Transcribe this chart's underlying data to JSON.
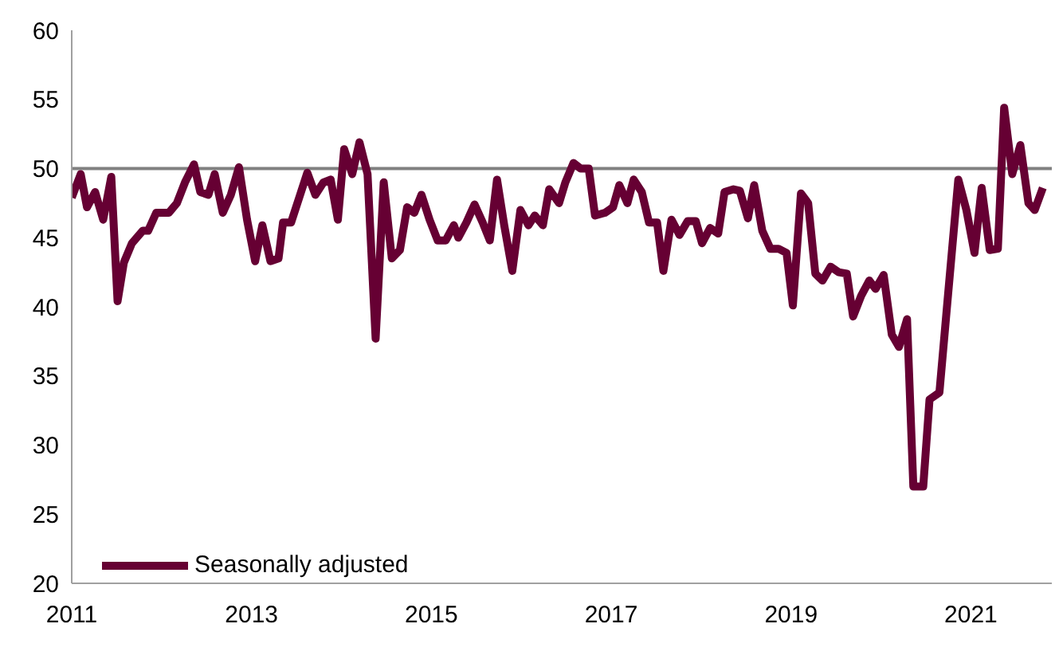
{
  "chart_data": {
    "type": "line",
    "x": [
      2011,
      2011.1,
      2011.17,
      2011.26,
      2011.35,
      2011.44,
      2011.51,
      2011.58,
      2011.67,
      2011.79,
      2011.85,
      2011.94,
      2012.08,
      2012.17,
      2012.26,
      2012.36,
      2012.43,
      2012.52,
      2012.59,
      2012.68,
      2012.77,
      2012.86,
      2012.95,
      2013.04,
      2013.12,
      2013.21,
      2013.3,
      2013.35,
      2013.44,
      2013.53,
      2013.62,
      2013.71,
      2013.8,
      2013.88,
      2013.96,
      2014.03,
      2014.12,
      2014.2,
      2014.29,
      2014.38,
      2014.47,
      2014.56,
      2014.65,
      2014.73,
      2014.81,
      2014.89,
      2014.98,
      2015.07,
      2015.16,
      2015.25,
      2015.3,
      2015.39,
      2015.48,
      2015.57,
      2015.65,
      2015.73,
      2015.81,
      2015.9,
      2015.99,
      2016.08,
      2016.15,
      2016.24,
      2016.31,
      2016.42,
      2016.49,
      2016.58,
      2016.66,
      2016.75,
      2016.82,
      2016.93,
      2017.02,
      2017.09,
      2017.18,
      2017.25,
      2017.34,
      2017.42,
      2017.51,
      2017.58,
      2017.67,
      2017.76,
      2017.85,
      2017.94,
      2018.01,
      2018.1,
      2018.19,
      2018.26,
      2018.36,
      2018.43,
      2018.52,
      2018.59,
      2018.68,
      2018.77,
      2018.86,
      2018.95,
      2019.02,
      2019.11,
      2019.19,
      2019.27,
      2019.35,
      2019.44,
      2019.53,
      2019.62,
      2019.69,
      2019.78,
      2019.87,
      2019.94,
      2020.03,
      2020.12,
      2020.2,
      2020.29,
      2020.36,
      2020.47,
      2020.54,
      2020.65,
      2020.73,
      2020.86,
      2020.95,
      2021.04,
      2021.12,
      2021.21,
      2021.3,
      2021.37,
      2021.46,
      2021.55,
      2021.64,
      2021.71,
      2021.8
    ],
    "series": [
      {
        "name": "Seasonally adjusted",
        "color": "#660033",
        "values": [
          47.9,
          49.6,
          47.2,
          48.3,
          46.3,
          49.4,
          40.4,
          43.2,
          44.6,
          45.5,
          45.5,
          46.8,
          46.8,
          47.5,
          49,
          50.3,
          48.3,
          48.1,
          49.6,
          46.8,
          48.1,
          50.1,
          46.3,
          43.3,
          45.9,
          43.3,
          43.5,
          46.1,
          46.1,
          47.9,
          49.7,
          48.1,
          49,
          49.2,
          46.3,
          51.4,
          49.6,
          51.9,
          49.6,
          37.7,
          49,
          43.5,
          44.1,
          47.2,
          46.8,
          48.1,
          46.3,
          44.8,
          44.8,
          45.9,
          45,
          46.1,
          47.4,
          46.1,
          44.8,
          49.2,
          45.9,
          42.6,
          47,
          45.9,
          46.6,
          45.9,
          48.5,
          47.5,
          49,
          50.4,
          50,
          50,
          46.6,
          46.8,
          47.2,
          48.8,
          47.5,
          49.2,
          48.3,
          46.1,
          46.1,
          42.6,
          46.3,
          45.2,
          46.2,
          46.2,
          44.6,
          45.7,
          45.3,
          48.3,
          48.5,
          48.4,
          46.4,
          48.8,
          45.5,
          44.2,
          44.2,
          43.9,
          40.1,
          48.2,
          47.5,
          42.4,
          41.9,
          42.9,
          42.5,
          42.4,
          39.3,
          40.8,
          41.9,
          41.3,
          42.3,
          38,
          37.1,
          39.1,
          27,
          27,
          33.3,
          33.8,
          39.7,
          49.2,
          47,
          43.9,
          48.6,
          44.1,
          44.2,
          54.4,
          49.6,
          51.7,
          47.5,
          47,
          48.6
        ]
      }
    ],
    "xlim": [
      2011,
      2021.9
    ],
    "xticks": [
      2011,
      2013,
      2015,
      2017,
      2019,
      2021
    ],
    "ylim": [
      20,
      60
    ],
    "yticks": [
      20,
      25,
      30,
      35,
      40,
      45,
      50,
      55,
      60
    ],
    "ref_lines": [
      {
        "axis": "y",
        "value": 50,
        "color": "#808080"
      }
    ],
    "legend": "bottom left",
    "marker": "none",
    "line_style": "solid",
    "grid": false
  }
}
